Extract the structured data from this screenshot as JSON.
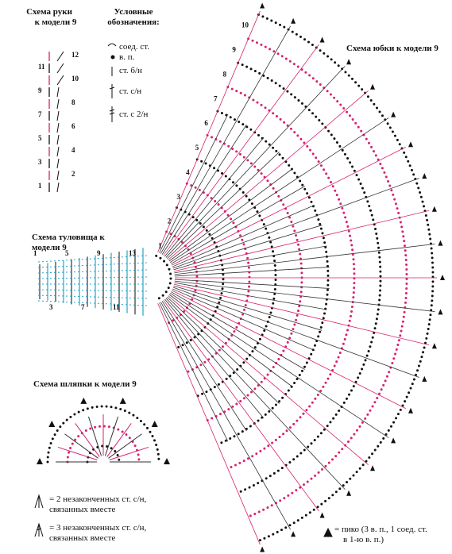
{
  "arm": {
    "title": [
      "Схема руки",
      "к модели 9"
    ],
    "rows": [
      "12",
      "11",
      "10",
      "9",
      "8",
      "7",
      "6",
      "5",
      "4",
      "3",
      "2",
      "1"
    ]
  },
  "legend": {
    "title": [
      "Условные",
      "обозначения:"
    ],
    "items": [
      "соед. ст.",
      "в. п.",
      "ст. б/н",
      "ст. с/н",
      "ст. с 2/н"
    ]
  },
  "skirt": {
    "title": "Схема юбки к модели 9",
    "rows": [
      "1",
      "2",
      "3",
      "4",
      "5",
      "6",
      "7",
      "8",
      "9",
      "10"
    ]
  },
  "body": {
    "title": [
      "Схема туловища к",
      "модели 9"
    ],
    "rows": [
      "1",
      "3",
      "5",
      "7",
      "9",
      "11",
      "13"
    ]
  },
  "hat": {
    "title": "Схема шляпки к модели 9"
  },
  "notes": [
    [
      "= 2 незаконченных ст. с/н,",
      "связанных вместе"
    ],
    [
      "= 3 незаконченных ст. с/н,",
      "связанных вместе"
    ],
    [
      "= пико (3 в. п., 1 соед. ст.",
      "в 1-ю в. п.)"
    ]
  ]
}
